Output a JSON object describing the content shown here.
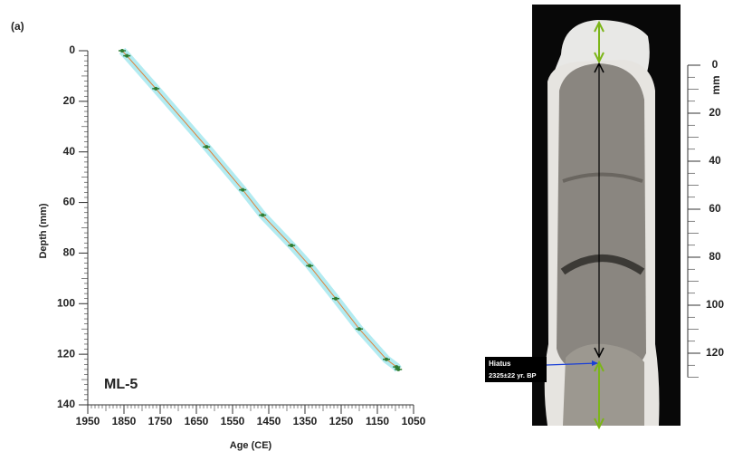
{
  "panel_label": "(a)",
  "chart_data": {
    "type": "line",
    "label": "ML-5",
    "x_label": "Age (CE)",
    "y_label": "Depth (mm)",
    "x": [
      1855,
      1842,
      1762,
      1622,
      1522,
      1467,
      1387,
      1337,
      1265,
      1200,
      1125,
      1097,
      1092
    ],
    "series": [
      {
        "color": "#2e7d32",
        "values": [
          0,
          2,
          15,
          38,
          55,
          65,
          77,
          85,
          98,
          110,
          122,
          125,
          126
        ]
      }
    ],
    "xlim": [
      1950,
      1050
    ],
    "xticks": [
      1950,
      1850,
      1750,
      1650,
      1550,
      1450,
      1350,
      1250,
      1150,
      1050
    ],
    "ylim": [
      0,
      140
    ],
    "yticks": [
      0,
      20,
      40,
      60,
      80,
      100,
      120,
      140
    ]
  },
  "photo_scale": {
    "unit": "mm",
    "lim": [
      0,
      130
    ],
    "ticks": [
      0,
      20,
      40,
      60,
      80,
      100,
      120
    ]
  },
  "annotation": {
    "title": "Hiatus",
    "text": "2325±22 yr. BP"
  }
}
